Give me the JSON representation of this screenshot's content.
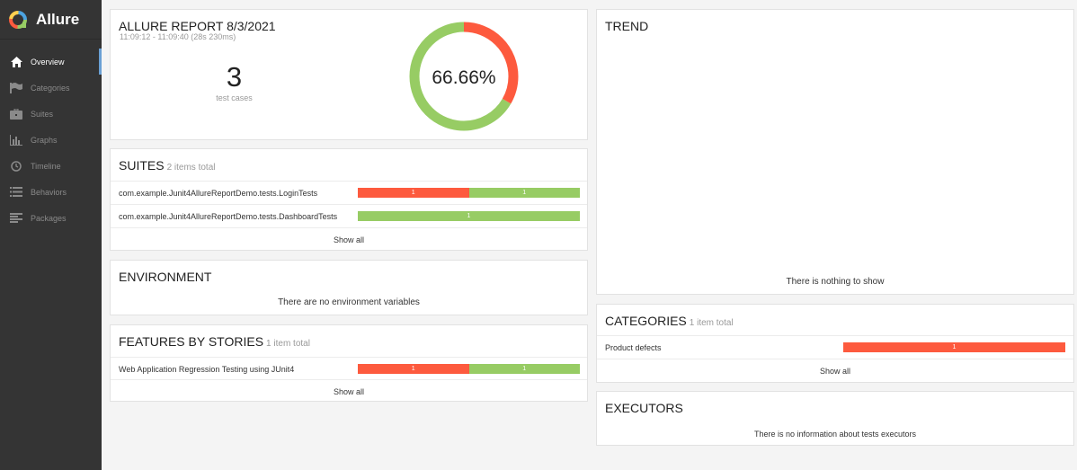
{
  "brand": {
    "name": "Allure"
  },
  "nav": [
    {
      "label": "Overview",
      "icon": "home-icon",
      "active": true
    },
    {
      "label": "Categories",
      "icon": "flag-icon"
    },
    {
      "label": "Suites",
      "icon": "briefcase-icon"
    },
    {
      "label": "Graphs",
      "icon": "bar-chart-icon"
    },
    {
      "label": "Timeline",
      "icon": "clock-icon"
    },
    {
      "label": "Behaviors",
      "icon": "list-icon"
    },
    {
      "label": "Packages",
      "icon": "align-left-icon"
    }
  ],
  "summary": {
    "title": "ALLURE REPORT 8/3/2021",
    "date": "11:09:12 - 11:09:40 (28s 230ms)",
    "count": "3",
    "count_label": "test cases",
    "percent": "66.66%",
    "passed_fraction": 0.6666
  },
  "suites": {
    "title": "SUITES",
    "total": "2 items total",
    "items": [
      {
        "name": "com.example.Junit4AllureReportDemo.tests.LoginTests",
        "failed": "1",
        "passed": "1"
      },
      {
        "name": "com.example.Junit4AllureReportDemo.tests.DashboardTests",
        "passed": "1"
      }
    ],
    "show_all": "Show all"
  },
  "environment": {
    "title": "ENVIRONMENT",
    "message": "There are no environment variables"
  },
  "features": {
    "title": "FEATURES BY STORIES",
    "total": "1 item total",
    "items": [
      {
        "name": "Web Application Regression Testing using JUnit4",
        "failed": "1",
        "passed": "1"
      }
    ],
    "show_all": "Show all"
  },
  "trend": {
    "title": "TREND",
    "message": "There is nothing to show"
  },
  "categories": {
    "title": "CATEGORIES",
    "total": "1 item total",
    "items": [
      {
        "name": "Product defects",
        "failed": "1"
      }
    ],
    "show_all": "Show all"
  },
  "executors": {
    "title": "EXECUTORS",
    "message": "There is no information about tests executors"
  },
  "colors": {
    "failed": "#fd5a3e",
    "passed": "#97cc64",
    "sidebar": "#343434",
    "active_marker": "#6aa0d4"
  }
}
